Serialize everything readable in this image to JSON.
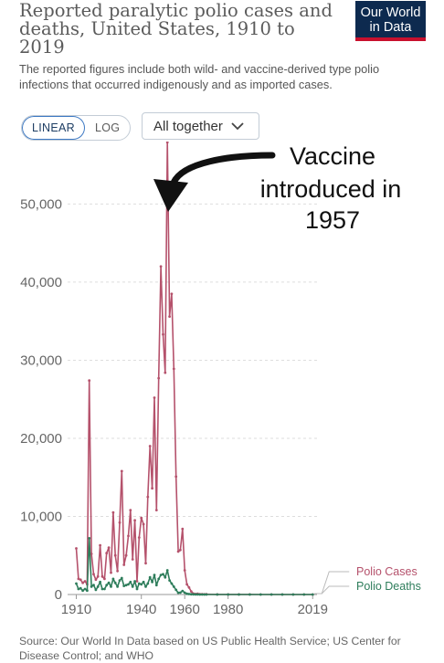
{
  "header": {
    "title": "Reported paralytic polio cases and deaths, United States, 1910 to 2019",
    "subtitle": "The reported figures include both wild- and vaccine-derived type polio infections that occurred indigenously and as imported cases.",
    "logo_line1": "Our World",
    "logo_line2": "in Data"
  },
  "controls": {
    "linear_label": "LINEAR",
    "log_label": "LOG",
    "active_scale": "linear",
    "dropdown_label": "All together"
  },
  "annotation": {
    "line1": "Vaccine",
    "line2": "introduced in",
    "line3": "1957"
  },
  "colors": {
    "cases": "#b5526c",
    "deaths": "#2e7d5b",
    "logo_bg": "#0d2a4f",
    "logo_accent": "#c8102e"
  },
  "source": "Source: Our World In Data based on US Public Health Service; US Center for Disease Control; and WHO",
  "chart_data": {
    "type": "line",
    "x": [
      1910,
      1911,
      1912,
      1913,
      1914,
      1915,
      1916,
      1917,
      1918,
      1919,
      1920,
      1921,
      1922,
      1923,
      1924,
      1925,
      1926,
      1927,
      1928,
      1929,
      1930,
      1931,
      1932,
      1933,
      1934,
      1935,
      1936,
      1937,
      1938,
      1939,
      1940,
      1941,
      1942,
      1943,
      1944,
      1945,
      1946,
      1947,
      1948,
      1949,
      1950,
      1951,
      1952,
      1953,
      1954,
      1955,
      1956,
      1957,
      1958,
      1959,
      1960,
      1961,
      1962,
      1963,
      1964,
      1965,
      1966,
      1967,
      1968,
      1969,
      1970,
      1975,
      1980,
      1985,
      1990,
      1995,
      2000,
      2005,
      2010,
      2015,
      2019
    ],
    "xticks": [
      "1910",
      "1940",
      "1960",
      "1980",
      "2019"
    ],
    "xtick_values": [
      1910,
      1940,
      1960,
      1980,
      2019
    ],
    "yticks": [
      "0",
      "10,000",
      "20,000",
      "30,000",
      "40,000",
      "50,000"
    ],
    "ytick_values": [
      0,
      10000,
      20000,
      30000,
      40000,
      50000
    ],
    "ylim": [
      0,
      58000
    ],
    "xlim": [
      1906,
      2021
    ],
    "grid": true,
    "legend": "right-end labels",
    "series": [
      {
        "name": "Polio Cases",
        "values": [
          5900,
          2000,
          1900,
          1500,
          1700,
          1300,
          27400,
          5200,
          2600,
          1900,
          2300,
          6300,
          2300,
          2000,
          5300,
          6000,
          2800,
          10500,
          5000,
          3000,
          9200,
          15800,
          3800,
          5000,
          7500,
          10800,
          4500,
          9500,
          1700,
          7300,
          9800,
          9000,
          4000,
          12500,
          19000,
          13600,
          25200,
          10800,
          27700,
          42000,
          33300,
          28400,
          57900,
          35600,
          38500,
          28900,
          15100,
          5500,
          5700,
          8400,
          3100,
          1300,
          900,
          400,
          120,
          70,
          100,
          40,
          50,
          20,
          30,
          10,
          10,
          8,
          6,
          4,
          3,
          2,
          1,
          1,
          0
        ]
      },
      {
        "name": "Polio Deaths",
        "values": [
          1400,
          700,
          800,
          500,
          700,
          500,
          7200,
          1000,
          1200,
          600,
          1000,
          1600,
          700,
          700,
          1200,
          1500,
          1000,
          2000,
          1500,
          1000,
          1800,
          2100,
          1100,
          1200,
          1300,
          1600,
          1000,
          1700,
          700,
          1400,
          1300,
          1600,
          1000,
          1400,
          2200,
          1600,
          2500,
          1200,
          2000,
          2500,
          2600,
          2200,
          3100,
          1800,
          1400,
          1000,
          600,
          220,
          250,
          460,
          230,
          90,
          60,
          40,
          20,
          10,
          10,
          5,
          5,
          5,
          5,
          1,
          1,
          1,
          0,
          0,
          0,
          0,
          0,
          0,
          0
        ]
      }
    ]
  }
}
